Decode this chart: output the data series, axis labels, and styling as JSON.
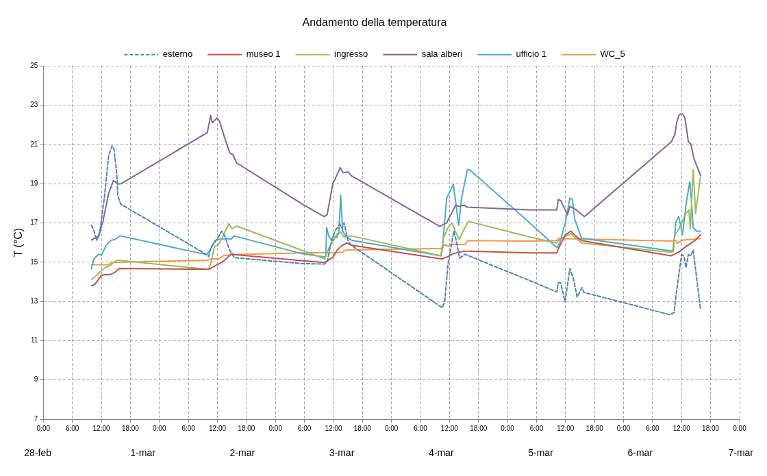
{
  "chart_data": {
    "type": "line",
    "title": "Andamento della temperatura",
    "ylabel": "T (°C)",
    "xlim": [
      "--02-28T00:00",
      "--03-06T00:00"
    ],
    "xticks": [
      {
        "value": "--02-28T00:00",
        "label": "0:00"
      },
      {
        "value": "--02-28T06:00",
        "label": "6:00"
      },
      {
        "value": "--02-28T12:00",
        "label": "12:00"
      },
      {
        "value": "--02-28T18:00",
        "label": "18:00"
      },
      {
        "value": "--03-01T00:00",
        "label": "0:00"
      },
      {
        "value": "--03-01T06:00",
        "label": "6:00"
      },
      {
        "value": "--03-01T12:00",
        "label": "12:00"
      },
      {
        "value": "--03-01T18:00",
        "label": "18:00"
      },
      {
        "value": "--03-02T00:00",
        "label": "0:00"
      },
      {
        "value": "--03-02T06:00",
        "label": "6:00"
      },
      {
        "value": "--03-02T12:00",
        "label": "12:00"
      },
      {
        "value": "--03-02T18:00",
        "label": "18:00"
      },
      {
        "value": "--03-03T00:00",
        "label": "0:00"
      },
      {
        "value": "--03-03T06:00",
        "label": "6:00"
      },
      {
        "value": "--03-03T12:00",
        "label": "12:00"
      },
      {
        "value": "--03-03T18:00",
        "label": "18:00"
      },
      {
        "value": "--03-04T00:00",
        "label": "0:00"
      },
      {
        "value": "--03-04T06:00",
        "label": "6:00"
      },
      {
        "value": "--03-04T12:00",
        "label": "12:00"
      },
      {
        "value": "--03-04T18:00",
        "label": "18:00"
      },
      {
        "value": "--03-05T00:00",
        "label": "0:00"
      },
      {
        "value": "--03-05T06:00",
        "label": "6:00"
      },
      {
        "value": "--03-05T12:00",
        "label": "12:00"
      },
      {
        "value": "--03-05T18:00",
        "label": "18:00"
      },
      {
        "value": "--03-06T00:00",
        "label": "0:00"
      }
    ],
    "annotations": [
      "28-feb",
      "1-mar",
      "2-mar",
      "3-mar",
      "4-mar",
      "5-mar",
      "6-mar",
      "7-mar"
    ],
    "ylim": [
      7,
      25
    ],
    "yticks": [
      7,
      9,
      11,
      13,
      15,
      17,
      19,
      21,
      23,
      25
    ],
    "grid": true,
    "legend": "top",
    "marker": "none",
    "series": [
      {
        "name": "esterno",
        "color": "#4f81bd",
        "line_style": "dashed",
        "x": [
          "--02-28T09:57",
          "--02-28T10:30",
          "--02-28T11:00",
          "--02-28T11:36",
          "--02-28T12:36",
          "--02-28T13:30",
          "--02-28T14:12",
          "--02-28T14:36",
          "--02-28T15:12",
          "--02-28T15:24",
          "--02-28T16:00",
          "--03-01T09:48",
          "--03-01T10:12",
          "--03-01T10:36",
          "--03-01T11:42",
          "--03-01T12:54",
          "--03-01T13:30",
          "--03-01T14:30",
          "--03-01T15:30",
          "--03-02T05:18",
          "--03-02T10:12",
          "--03-02T10:42",
          "--03-02T11:24",
          "--03-02T12:18",
          "--03-02T13:18",
          "--03-02T13:48",
          "--03-02T14:12",
          "--03-02T15:00",
          "--03-02T15:42",
          "--03-03T10:30",
          "--03-03T11:00",
          "--03-03T11:42",
          "--03-03T12:54",
          "--03-03T13:24",
          "--03-03T14:06",
          "--03-03T15:12",
          "--03-04T04:36",
          "--03-04T10:12",
          "--03-04T10:30",
          "--03-04T11:00",
          "--03-04T11:54",
          "--03-04T12:54",
          "--03-04T13:36",
          "--03-04T14:24",
          "--03-04T15:24",
          "--03-04T15:48",
          "--03-05T09:36",
          "--03-05T10:30",
          "--03-05T10:42",
          "--03-05T12:00",
          "--03-05T12:30",
          "--03-05T12:54",
          "--03-05T13:24",
          "--03-05T13:54",
          "--03-05T14:24",
          "--03-05T15:54"
        ],
        "values": [
          16.88,
          16.58,
          16.1,
          16.4,
          18.26,
          20.42,
          20.92,
          20.78,
          19.46,
          18.38,
          17.96,
          15.38,
          15.28,
          15.74,
          16.1,
          16.58,
          16.34,
          15.62,
          15.23,
          14.93,
          14.9,
          15.02,
          15.86,
          16.58,
          16.94,
          16.72,
          17,
          16.1,
          15.86,
          12.68,
          12.98,
          14.9,
          16.58,
          16.1,
          15.2,
          15.4,
          14.06,
          13.48,
          13.96,
          13.94,
          12.98,
          14.68,
          14.18,
          13.22,
          13.7,
          13.46,
          12.32,
          12.44,
          13.04,
          15.38,
          15.32,
          14.72,
          15.38,
          15.32,
          15.62,
          12.62
        ]
      },
      {
        "name": "museo 1",
        "color": "#c0504d",
        "line_style": "solid",
        "x": [
          "--02-28T09:57",
          "--02-28T10:42",
          "--02-28T11:54",
          "--02-28T12:36",
          "--02-28T13:48",
          "--02-28T14:48",
          "--02-28T15:42",
          "--03-01T10:12",
          "--03-01T13:06",
          "--03-01T14:18",
          "--03-01T15:00",
          "--03-01T15:30",
          "--03-02T05:18",
          "--03-02T10:12",
          "--03-02T11:54",
          "--03-02T12:48",
          "--03-02T13:30",
          "--03-02T14:42",
          "--03-02T15:42",
          "--03-03T10:30",
          "--03-03T11:24",
          "--03-03T12:54",
          "--03-03T13:48",
          "--03-03T15:00",
          "--03-03T16:12",
          "--03-04T04:36",
          "--03-04T10:12",
          "--03-04T10:30",
          "--03-04T12:00",
          "--03-04T13:06",
          "--03-04T14:06",
          "--03-04T15:18",
          "--03-05T09:48",
          "--03-05T11:30",
          "--03-05T12:54",
          "--03-05T14:54",
          "--03-05T15:54"
        ],
        "values": [
          13.8,
          13.88,
          14.3,
          14.36,
          14.36,
          14.48,
          14.68,
          14.63,
          15.02,
          15.28,
          15.44,
          15.38,
          15.08,
          14.98,
          15.26,
          15.62,
          15.8,
          15.98,
          15.86,
          15.16,
          15.26,
          15.44,
          15.5,
          15.56,
          15.56,
          15.47,
          15.47,
          15.68,
          16.4,
          16.58,
          16.34,
          16.1,
          15.32,
          15.52,
          15.8,
          16.12,
          16.4
        ]
      },
      {
        "name": "ingresso",
        "color": "#9bbb59",
        "line_style": "solid",
        "x": [
          "--02-28T09:57",
          "--02-28T10:54",
          "--02-28T11:54",
          "--02-28T12:48",
          "--02-28T13:54",
          "--02-28T14:42",
          "--02-28T15:24",
          "--03-01T10:12",
          "--03-01T10:42",
          "--03-01T11:24",
          "--03-01T12:06",
          "--03-01T13:06",
          "--03-01T13:36",
          "--03-01T14:24",
          "--03-01T15:00",
          "--03-01T15:54",
          "--03-02T05:18",
          "--03-02T10:12",
          "--03-02T11:06",
          "--03-02T12:18",
          "--03-02T12:48",
          "--03-02T13:30",
          "--03-02T14:12",
          "--03-02T15:42",
          "--03-03T10:12",
          "--03-03T10:42",
          "--03-03T11:42",
          "--03-03T12:30",
          "--03-03T13:18",
          "--03-03T14:00",
          "--03-03T14:48",
          "--03-03T15:54",
          "--03-04T04:36",
          "--03-04T10:00",
          "--03-04T10:48",
          "--03-04T12:00",
          "--03-04T13:06",
          "--03-04T14:06",
          "--03-04T15:18",
          "--03-05T10:06",
          "--03-05T10:36",
          "--03-05T11:30",
          "--03-05T12:42",
          "--03-05T13:30",
          "--03-05T13:48",
          "--03-05T14:24",
          "--03-05T14:54",
          "--03-05T15:54"
        ],
        "values": [
          14.12,
          14.3,
          14.54,
          14.72,
          14.84,
          15.02,
          15.1,
          14.63,
          15.02,
          15.8,
          15.86,
          16.28,
          16.58,
          16.96,
          16.7,
          16.84,
          15.62,
          15.16,
          15.74,
          16.22,
          16.46,
          16.52,
          16.28,
          16.34,
          15.32,
          16.22,
          16.76,
          17,
          16.52,
          16.16,
          16.58,
          17.08,
          16.28,
          15.98,
          16.16,
          16.32,
          16.46,
          16.22,
          15.98,
          15.5,
          16.4,
          16.7,
          17.42,
          17.66,
          16.7,
          19.72,
          17.48,
          19.34
        ]
      },
      {
        "name": "sala alberi",
        "color": "#8064a2",
        "line_style": "solid",
        "x": [
          "--02-28T09:57",
          "--02-28T11:24",
          "--02-28T12:18",
          "--02-28T13:30",
          "--02-28T14:30",
          "--02-28T15:24",
          "--02-28T16:06",
          "--03-01T09:54",
          "--03-01T10:36",
          "--03-01T10:54",
          "--03-01T11:54",
          "--03-01T12:24",
          "--03-01T13:36",
          "--03-01T14:36",
          "--03-01T15:12",
          "--03-01T15:57",
          "--03-02T05:18",
          "--03-02T10:06",
          "--03-02T10:42",
          "--03-02T11:54",
          "--03-02T12:12",
          "--03-02T13:24",
          "--03-02T14:00",
          "--03-02T15:00",
          "--03-02T15:42",
          "--03-03T10:00",
          "--03-03T11:24",
          "--03-03T13:18",
          "--03-03T13:54",
          "--03-03T15:00",
          "--03-03T15:42",
          "--03-04T04:36",
          "--03-04T10:12",
          "--03-04T10:30",
          "--03-04T11:00",
          "--03-04T12:24",
          "--03-04T12:54",
          "--03-04T14:06",
          "--03-04T15:18",
          "--03-04T15:54",
          "--03-05T09:54",
          "--03-05T10:36",
          "--03-05T11:00",
          "--03-05T11:30",
          "--03-05T12:12",
          "--03-05T12:42",
          "--03-05T13:24",
          "--03-05T13:54",
          "--03-05T14:36",
          "--03-05T15:57"
        ],
        "values": [
          16.13,
          16.34,
          17.06,
          18.5,
          19.16,
          18.98,
          19,
          21.6,
          22.48,
          22.1,
          22.34,
          22.2,
          21.26,
          20.54,
          20.48,
          20.06,
          18,
          17.32,
          17.42,
          19.04,
          19.16,
          19.82,
          19.55,
          19.6,
          19.4,
          16.82,
          17,
          17.92,
          17.84,
          17.9,
          17.8,
          17.66,
          17.66,
          18.2,
          18.14,
          17.42,
          17.84,
          17.68,
          17.44,
          17.32,
          21.14,
          21.5,
          22.12,
          22.52,
          22.56,
          22.34,
          21.14,
          21.02,
          20.24,
          19.4
        ]
      },
      {
        "name": "ufficio 1",
        "color": "#4bacc6",
        "line_style": "solid",
        "x": [
          "--02-28T09:57",
          "--02-28T10:24",
          "--02-28T11:24",
          "--02-28T12:00",
          "--02-28T13:00",
          "--02-28T14:00",
          "--02-28T14:42",
          "--02-28T15:54",
          "--03-01T09:48",
          "--03-01T10:30",
          "--03-01T11:30",
          "--03-01T12:06",
          "--03-01T14:00",
          "--03-01T14:48",
          "--03-01T15:24",
          "--03-02T05:18",
          "--03-02T10:24",
          "--03-02T10:36",
          "--03-02T11:00",
          "--03-02T11:36",
          "--03-02T12:00",
          "--03-02T12:36",
          "--03-02T13:06",
          "--03-02T13:30",
          "--03-02T13:54",
          "--03-02T14:30",
          "--03-02T15:42",
          "--03-03T10:12",
          "--03-03T10:30",
          "--03-03T11:24",
          "--03-03T12:48",
          "--03-03T13:18",
          "--03-03T13:54",
          "--03-03T14:30",
          "--03-03T15:42",
          "--03-03T16:12",
          "--03-04T04:36",
          "--03-04T10:12",
          "--03-04T10:48",
          "--03-04T12:00",
          "--03-04T12:54",
          "--03-04T13:24",
          "--03-04T13:54",
          "--03-04T15:18",
          "--03-05T10:18",
          "--03-05T10:48",
          "--03-05T11:24",
          "--03-05T12:12",
          "--03-05T12:54",
          "--03-05T13:42",
          "--03-05T14:00",
          "--03-05T14:24",
          "--03-05T15:06",
          "--03-05T15:54"
        ],
        "values": [
          14.66,
          15.14,
          15.4,
          15.35,
          15.86,
          16.12,
          16.14,
          16.34,
          15.38,
          15.62,
          16.1,
          16.16,
          16.2,
          16.16,
          16.34,
          15.44,
          15.26,
          16.76,
          16.34,
          16.1,
          16.34,
          16.24,
          16.46,
          18.4,
          16.58,
          16.34,
          16.12,
          15.32,
          15.62,
          18.26,
          18.96,
          18.02,
          16.88,
          18.26,
          19.72,
          19.7,
          17,
          15.74,
          15.98,
          17.06,
          18.26,
          18.2,
          17.18,
          16.22,
          15.56,
          17.06,
          17.32,
          16.4,
          17.9,
          19.1,
          18.26,
          16.76,
          16.58,
          16.58
        ]
      },
      {
        "name": "WC_5",
        "color": "#f79646",
        "line_style": "solid",
        "x": [
          "--02-28T09:57",
          "--02-28T13:30",
          "--02-28T14:00",
          "--03-01T09:54",
          "--03-01T10:42",
          "--03-01T12:24",
          "--03-01T13:06",
          "--03-01T15:00",
          "--03-02T05:18",
          "--03-02T13:48",
          "--03-02T14:30",
          "--03-03T10:30",
          "--03-03T11:00",
          "--03-03T11:48",
          "--03-03T12:24",
          "--03-03T15:12",
          "--03-03T15:48",
          "--03-04T04:36",
          "--03-04T10:12",
          "--03-04T10:30",
          "--03-05T10:06",
          "--03-05T10:48",
          "--03-05T11:06",
          "--03-05T12:00",
          "--03-05T15:54"
        ],
        "values": [
          14.87,
          14.87,
          14.98,
          15.1,
          15.17,
          15.17,
          15.32,
          15.38,
          15.47,
          15.5,
          15.62,
          15.7,
          15.9,
          15.8,
          15.9,
          15.9,
          16.1,
          16.07,
          16.1,
          16.2,
          16.07,
          16.1,
          15.95,
          16.12,
          16.2
        ]
      }
    ]
  }
}
